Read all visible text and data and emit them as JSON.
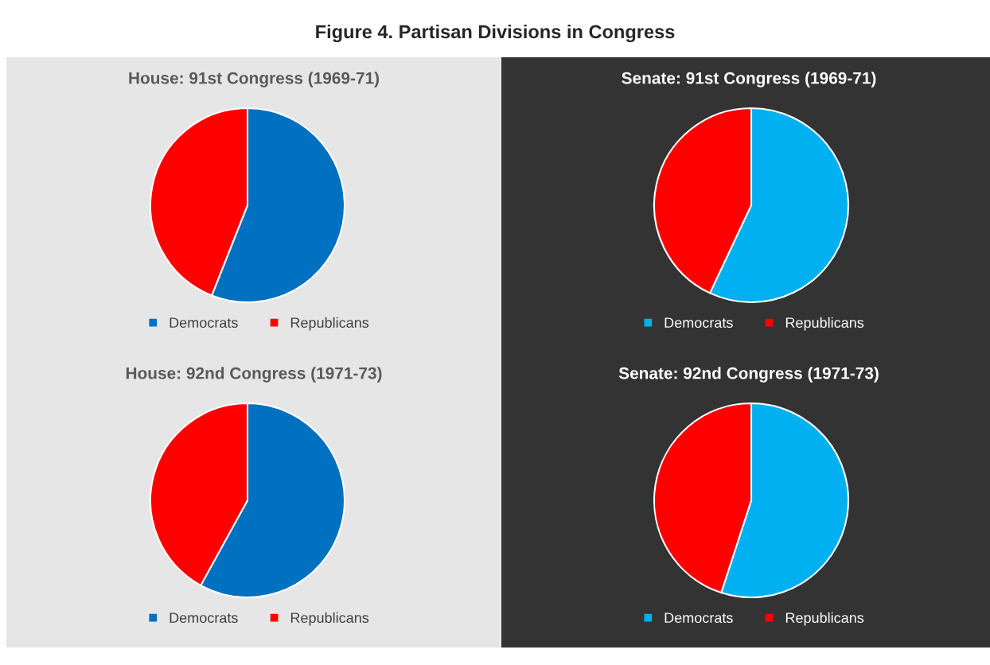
{
  "chart_data": [
    {
      "type": "other",
      "title": "Figure 4. Partisan Divisions in Congress"
    },
    {
      "type": "pie",
      "title": "House: 91st Congress (1969-71)",
      "categories": [
        "Democrats",
        "Republicans"
      ],
      "values": [
        56,
        44
      ],
      "colors": [
        "#0070c0",
        "#ff0000"
      ],
      "legend": "bottom"
    },
    {
      "type": "pie",
      "title": "Senate: 91st Congress (1969-71)",
      "categories": [
        "Democrats",
        "Republicans"
      ],
      "values": [
        57,
        43
      ],
      "colors": [
        "#00b0f0",
        "#ff0000"
      ],
      "legend": "bottom"
    },
    {
      "type": "pie",
      "title": "House: 92nd Congress (1971-73)",
      "categories": [
        "Democrats",
        "Republicans"
      ],
      "values": [
        58,
        42
      ],
      "colors": [
        "#0070c0",
        "#ff0000"
      ],
      "legend": "bottom"
    },
    {
      "type": "pie",
      "title": "Senate: 92nd Congress (1971-73)",
      "categories": [
        "Democrats",
        "Republicans"
      ],
      "values": [
        55,
        45
      ],
      "colors": [
        "#00b0f0",
        "#ff0000"
      ],
      "legend": "bottom"
    }
  ]
}
